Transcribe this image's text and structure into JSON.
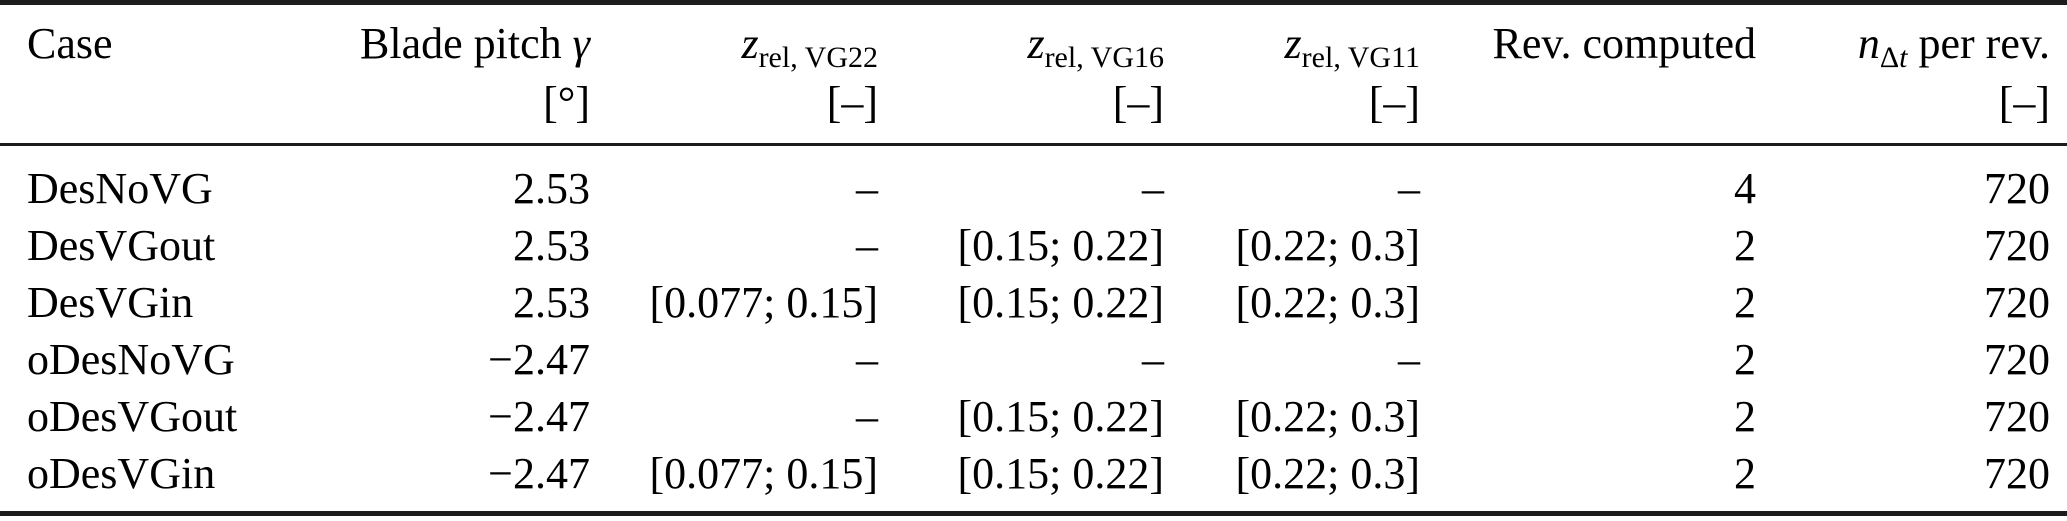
{
  "table": {
    "header": {
      "case": "Case",
      "blade_pitch": {
        "label": "Blade pitch",
        "symbol": "γ",
        "unit": "[°]"
      },
      "z_vg22": {
        "base": "z",
        "sub": "rel, VG22",
        "unit": "[–]"
      },
      "z_vg16": {
        "base": "z",
        "sub": "rel, VG16",
        "unit": "[–]"
      },
      "z_vg11": {
        "base": "z",
        "sub": "rel, VG11",
        "unit": "[–]"
      },
      "rev_computed": "Rev. computed",
      "n_dt": {
        "base": "n",
        "sub_delta": "Δ",
        "sub_t": "t",
        "rest": "per rev.",
        "unit": "[–]"
      }
    },
    "rows": [
      [
        "DesNoVG",
        "2.53",
        "–",
        "–",
        "–",
        "4",
        "720"
      ],
      [
        "DesVGout",
        "2.53",
        "–",
        "[0.15; 0.22]",
        "[0.22; 0.3]",
        "2",
        "720"
      ],
      [
        "DesVGin",
        "2.53",
        "[0.077; 0.15]",
        "[0.15; 0.22]",
        "[0.22; 0.3]",
        "2",
        "720"
      ],
      [
        "oDesNoVG",
        "−2.47",
        "–",
        "–",
        "–",
        "2",
        "720"
      ],
      [
        "oDesVGout",
        "−2.47",
        "–",
        "[0.15; 0.22]",
        "[0.22; 0.3]",
        "2",
        "720"
      ],
      [
        "oDesVGin",
        "−2.47",
        "[0.077; 0.15]",
        "[0.15; 0.22]",
        "[0.22; 0.3]",
        "2",
        "720"
      ]
    ]
  },
  "colors": {
    "text": "#000000",
    "rule": "#1c1c1c",
    "background": "#ffffff"
  }
}
